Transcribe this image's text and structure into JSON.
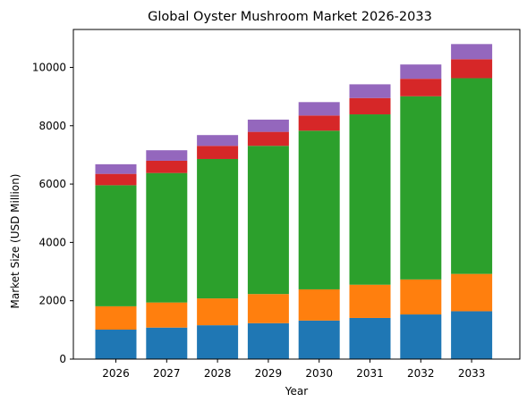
{
  "chart_data": {
    "type": "bar",
    "stacked": true,
    "title": "Global Oyster Mushroom Market 2026-2033",
    "xlabel": "Year",
    "ylabel": "Market Size (USD Million)",
    "categories": [
      "2026",
      "2027",
      "2028",
      "2029",
      "2030",
      "2031",
      "2032",
      "2033"
    ],
    "ylim": [
      0,
      11300
    ],
    "yticks": [
      0,
      2000,
      4000,
      6000,
      8000,
      10000
    ],
    "grid": false,
    "legend": "none",
    "series": [
      {
        "color": "#1f77b4",
        "values": [
          1010,
          1080,
          1160,
          1230,
          1320,
          1410,
          1530,
          1640
        ]
      },
      {
        "color": "#ff7f0e",
        "values": [
          800,
          860,
          920,
          1000,
          1070,
          1140,
          1200,
          1280
        ]
      },
      {
        "color": "#2ca02c",
        "values": [
          4150,
          4440,
          4780,
          5080,
          5440,
          5840,
          6280,
          6710
        ]
      },
      {
        "color": "#d62728",
        "values": [
          390,
          420,
          450,
          480,
          520,
          560,
          600,
          650
        ]
      },
      {
        "color": "#9467bd",
        "values": [
          330,
          360,
          370,
          420,
          460,
          470,
          490,
          520
        ]
      }
    ]
  }
}
